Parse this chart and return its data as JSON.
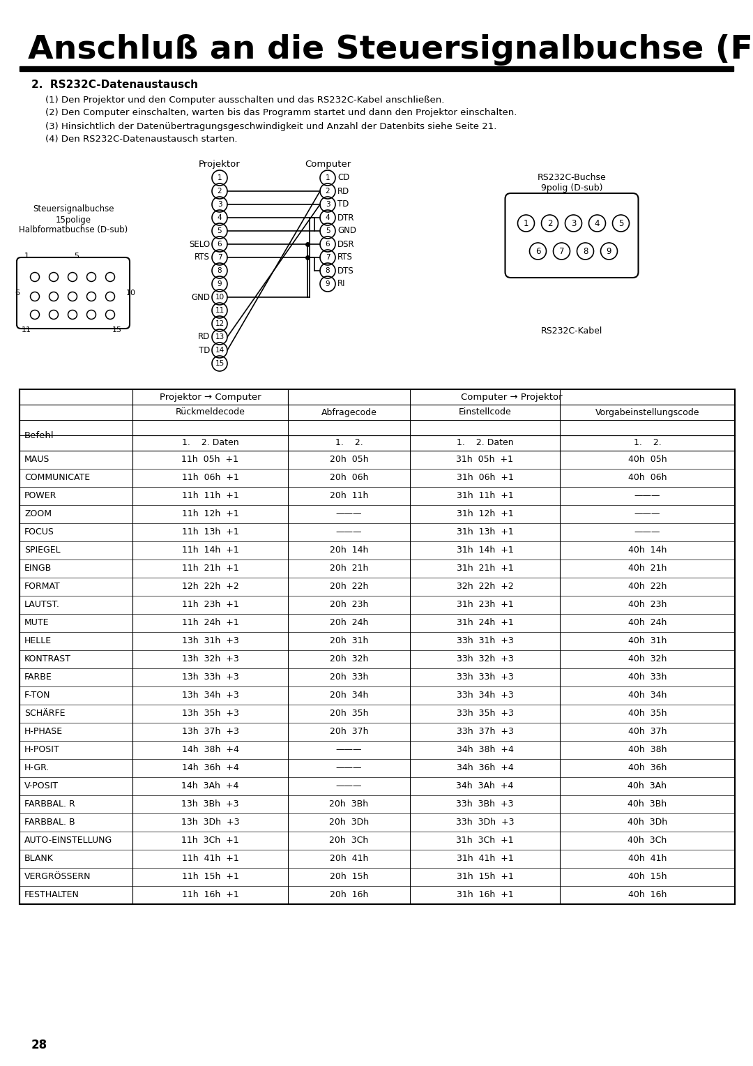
{
  "title": "Anschluß an die Steuersignalbuchse (Fortsetzung)",
  "section_title": "2.  RS232C-Datenaustausch",
  "instructions": [
    "(1) Den Projektor und den Computer ausschalten und das RS232C-Kabel anschließen.",
    "(2) Den Computer einschalten, warten bis das Programm startet und dann den Projektor einschalten.",
    "(3) Hinsichtlich der Datenübertragungsgeschwindigkeit und Anzahl der Datenbits siehe Seite 21.",
    "(4) Den RS232C-Datenaustausch starten."
  ],
  "proj_labels_left": {
    "5": "SELO",
    "6": "RTS",
    "9": "GND",
    "12": "RD",
    "13": "TD"
  },
  "comp_labels_right": [
    "CD",
    "RD",
    "TD",
    "DTR",
    "GND",
    "DSR",
    "RTS",
    "DTS",
    "RI"
  ],
  "rs232c_kabel_label": "RS232C-Kabel",
  "dsub9_label1": "RS232C-Buchse",
  "dsub9_label2": "9polig (D-sub)",
  "connector15_label1": "Steuersignalbuchse",
  "connector15_label2": "15polige",
  "connector15_label3": "Halbformatbuchse (D-sub)",
  "table_rows": [
    [
      "MAUS",
      "11h  05h  +1",
      "20h  05h",
      "31h  05h  +1",
      "40h  05h"
    ],
    [
      "COMMUNICATE",
      "11h  06h  +1",
      "20h  06h",
      "31h  06h  +1",
      "40h  06h"
    ],
    [
      "POWER",
      "11h  11h  +1",
      "20h  11h",
      "31h  11h  +1",
      "———"
    ],
    [
      "ZOOM",
      "11h  12h  +1",
      "———",
      "31h  12h  +1",
      "———"
    ],
    [
      "FOCUS",
      "11h  13h  +1",
      "———",
      "31h  13h  +1",
      "———"
    ],
    [
      "SPIEGEL",
      "11h  14h  +1",
      "20h  14h",
      "31h  14h  +1",
      "40h  14h"
    ],
    [
      "EINGB",
      "11h  21h  +1",
      "20h  21h",
      "31h  21h  +1",
      "40h  21h"
    ],
    [
      "FORMAT",
      "12h  22h  +2",
      "20h  22h",
      "32h  22h  +2",
      "40h  22h"
    ],
    [
      "LAUTST.",
      "11h  23h  +1",
      "20h  23h",
      "31h  23h  +1",
      "40h  23h"
    ],
    [
      "MUTE",
      "11h  24h  +1",
      "20h  24h",
      "31h  24h  +1",
      "40h  24h"
    ],
    [
      "HELLE",
      "13h  31h  +3",
      "20h  31h",
      "33h  31h  +3",
      "40h  31h"
    ],
    [
      "KONTRAST",
      "13h  32h  +3",
      "20h  32h",
      "33h  32h  +3",
      "40h  32h"
    ],
    [
      "FARBE",
      "13h  33h  +3",
      "20h  33h",
      "33h  33h  +3",
      "40h  33h"
    ],
    [
      "F-TON",
      "13h  34h  +3",
      "20h  34h",
      "33h  34h  +3",
      "40h  34h"
    ],
    [
      "SCHÄRFE",
      "13h  35h  +3",
      "20h  35h",
      "33h  35h  +3",
      "40h  35h"
    ],
    [
      "H-PHASE",
      "13h  37h  +3",
      "20h  37h",
      "33h  37h  +3",
      "40h  37h"
    ],
    [
      "H-POSIT",
      "14h  38h  +4",
      "———",
      "34h  38h  +4",
      "40h  38h"
    ],
    [
      "H-GR.",
      "14h  36h  +4",
      "———",
      "34h  36h  +4",
      "40h  36h"
    ],
    [
      "V-POSIT",
      "14h  3Ah  +4",
      "———",
      "34h  3Ah  +4",
      "40h  3Ah"
    ],
    [
      "FARBBAL. R",
      "13h  3Bh  +3",
      "20h  3Bh",
      "33h  3Bh  +3",
      "40h  3Bh"
    ],
    [
      "FARBBAL. B",
      "13h  3Dh  +3",
      "20h  3Dh",
      "33h  3Dh  +3",
      "40h  3Dh"
    ],
    [
      "AUTO-EINSTELLUNG",
      "11h  3Ch  +1",
      "20h  3Ch",
      "31h  3Ch  +1",
      "40h  3Ch"
    ],
    [
      "BLANK",
      "11h  41h  +1",
      "20h  41h",
      "31h  41h  +1",
      "40h  41h"
    ],
    [
      "VERGRÖSSERN",
      "11h  15h  +1",
      "20h  15h",
      "31h  15h  +1",
      "40h  15h"
    ],
    [
      "FESTHALTEN",
      "11h  16h  +1",
      "20h  16h",
      "31h  16h  +1",
      "40h  16h"
    ]
  ],
  "page_number": "28",
  "bg_color": "#ffffff",
  "text_color": "#000000",
  "title_fontsize": 34,
  "section_fontsize": 11,
  "body_fontsize": 9.5,
  "table_fontsize": 9
}
